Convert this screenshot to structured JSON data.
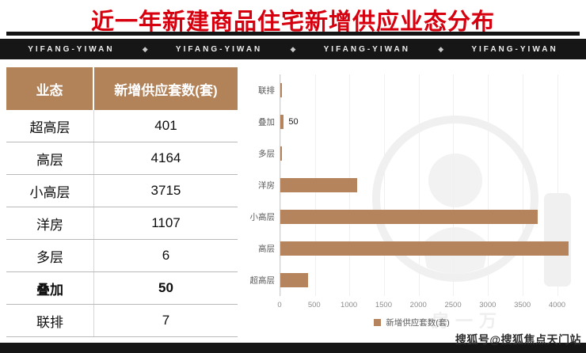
{
  "page": {
    "title": "近一年新建商品住宅新增供应业态分布"
  },
  "banner": {
    "items": [
      "YIFANG-YIWAN",
      "YIFANG-YIWAN",
      "YIFANG-YIWAN",
      "YIFANG-YIWAN"
    ],
    "separator": "◆"
  },
  "table": {
    "headers": [
      "业态",
      "新增供应套数(套)"
    ],
    "rows": [
      {
        "label": "超高层",
        "value": "401",
        "bold": false
      },
      {
        "label": "高层",
        "value": "4164",
        "bold": false
      },
      {
        "label": "小高层",
        "value": "3715",
        "bold": false
      },
      {
        "label": "洋房",
        "value": "1107",
        "bold": false
      },
      {
        "label": "多层",
        "value": "6",
        "bold": false
      },
      {
        "label": "叠加",
        "value": "50",
        "bold": true
      },
      {
        "label": "联排",
        "value": "7",
        "bold": false
      }
    ]
  },
  "chart_data": {
    "type": "bar",
    "orientation": "horizontal",
    "title": "",
    "categories": [
      "联排",
      "叠加",
      "多层",
      "洋房",
      "小高层",
      "高层",
      "超高层"
    ],
    "values": [
      7,
      50,
      6,
      1107,
      3715,
      4164,
      401
    ],
    "data_labels": {
      "叠加": "50"
    },
    "xlim": [
      0,
      4200
    ],
    "xticks": [
      0,
      500,
      1000,
      1500,
      2000,
      2500,
      3000,
      3500,
      4000
    ],
    "grid": true,
    "legend": "新增供应套数(套)",
    "legend_position": "bottom",
    "bar_color": "#b5835c"
  },
  "watermark": {
    "text": "一房一万"
  },
  "credit": "搜狐号@搜狐焦点天门站",
  "colors": {
    "title": "#d7000f",
    "banner_bg": "#161616",
    "table_header_bg": "#b28259",
    "bar": "#b5835c",
    "footer_bg": "#161616"
  }
}
